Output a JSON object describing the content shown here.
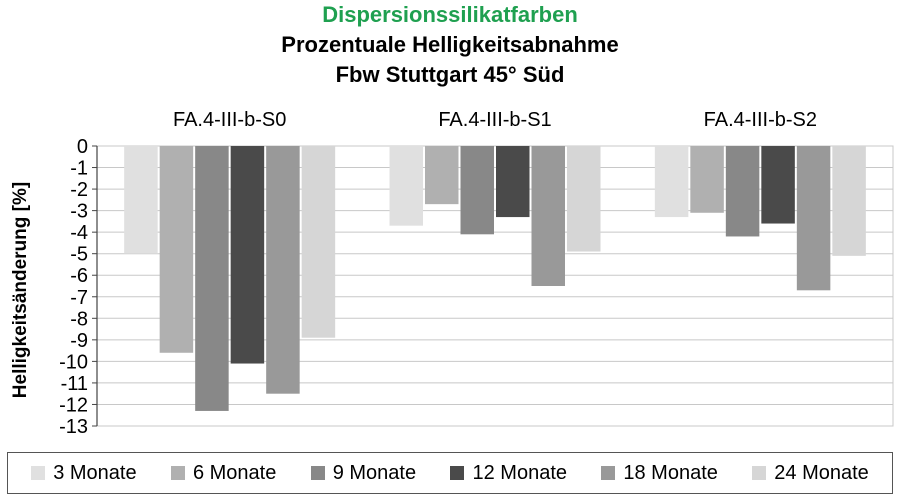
{
  "chart_data": {
    "type": "bar",
    "title": "Dispersionssilikatfarben",
    "title_color": "#1fa050",
    "subtitle_lines": [
      "Prozentuale Helligkeitsabnahme",
      "Fbw Stuttgart 45° Süd"
    ],
    "ylabel": "Helligkeitsänderung  [%]",
    "xlabel": "",
    "ylim": [
      -13,
      0
    ],
    "yticks": [
      "0",
      "-1",
      "-2",
      "-3",
      "-4",
      "-5",
      "-6",
      "-7",
      "-8",
      "-9",
      "-10",
      "-11",
      "-12",
      "-13"
    ],
    "grid": true,
    "legend_position": "bottom",
    "categories": [
      "FA.4-III-b-S0",
      "FA.4-III-b-S1",
      "FA.4-III-b-S2"
    ],
    "series": [
      {
        "name": "3 Monate",
        "color": "#e0e0e0",
        "values": [
          -5.0,
          -3.7,
          -3.3
        ]
      },
      {
        "name": "6 Monate",
        "color": "#b0b0b0",
        "values": [
          -9.6,
          -2.7,
          -3.1
        ]
      },
      {
        "name": "9 Monate",
        "color": "#888888",
        "values": [
          -12.3,
          -4.1,
          -4.2
        ]
      },
      {
        "name": "12 Monate",
        "color": "#4a4a4a",
        "values": [
          -10.1,
          -3.3,
          -3.6
        ]
      },
      {
        "name": "18 Monate",
        "color": "#999999",
        "values": [
          -11.5,
          -6.5,
          -6.7
        ]
      },
      {
        "name": "24 Monate",
        "color": "#d6d6d6",
        "values": [
          -8.9,
          -4.9,
          -5.1
        ]
      }
    ]
  }
}
